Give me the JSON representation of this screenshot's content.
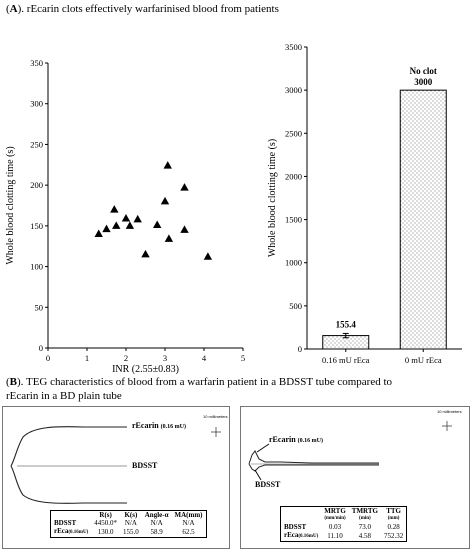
{
  "panel_a": {
    "label": "A",
    "title_rest": "). rEcarin clots effectively warfarinised blood from patients"
  },
  "panel_b": {
    "label": "B",
    "title_line1_rest": "). TEG characteristics of blood from a warfarin patient in a BDSST tube compared to",
    "title_line2": "rEcarin in a BD plain tube"
  },
  "chart_data": [
    {
      "type": "scatter",
      "title": "",
      "xlabel": "INR (2.55±0.83)",
      "ylabel": "Whole blood clotting time (s)",
      "xlim": [
        0,
        5
      ],
      "ylim": [
        0,
        350
      ],
      "xticks": [
        0,
        1,
        2,
        3,
        4,
        5
      ],
      "yticks": [
        0,
        50,
        100,
        150,
        200,
        250,
        300,
        350
      ],
      "marker": "triangle",
      "points": [
        {
          "x": 1.3,
          "y": 140
        },
        {
          "x": 1.5,
          "y": 146
        },
        {
          "x": 1.7,
          "y": 170
        },
        {
          "x": 1.75,
          "y": 150
        },
        {
          "x": 2.0,
          "y": 159
        },
        {
          "x": 2.1,
          "y": 150
        },
        {
          "x": 2.3,
          "y": 158
        },
        {
          "x": 2.5,
          "y": 115
        },
        {
          "x": 2.8,
          "y": 151
        },
        {
          "x": 3.0,
          "y": 180
        },
        {
          "x": 3.07,
          "y": 224
        },
        {
          "x": 3.1,
          "y": 134
        },
        {
          "x": 3.5,
          "y": 197
        },
        {
          "x": 3.5,
          "y": 145
        },
        {
          "x": 4.1,
          "y": 112
        }
      ]
    },
    {
      "type": "bar",
      "title": "",
      "ylabel": "Whole blood clotting time (s)",
      "ylim": [
        0,
        3500
      ],
      "yticks": [
        0,
        500,
        1000,
        1500,
        2000,
        2500,
        3000,
        3500
      ],
      "categories": [
        "0.16 mU rEca",
        "0 mU rEca"
      ],
      "values": [
        155.4,
        3000
      ],
      "error": [
        25,
        0
      ],
      "data_labels": [
        "155.4",
        "3000"
      ],
      "annotations": [
        "No clot"
      ],
      "fill": "dotted"
    }
  ],
  "teg_left": {
    "scale_label": "10 millimeters",
    "curve1_label": "rEcarin",
    "curve1_unit": "(0.16 mU)",
    "curve2_label": "BDSST",
    "table": {
      "headers": [
        "",
        "R(s)",
        "K(s)",
        "Angle-α",
        "MA(mm)"
      ],
      "rows": [
        {
          "label": "BDSST",
          "unit": "",
          "values": [
            "4450.0*",
            "N/A",
            "N/A",
            "N/A"
          ]
        },
        {
          "label": "rEca",
          "unit": "(0.16mU)",
          "values": [
            "130.0",
            "155.0",
            "58.9",
            "62.5"
          ]
        }
      ]
    }
  },
  "teg_right": {
    "scale_label": "10 millimeters",
    "curve1_label": "rEcarin",
    "curve1_unit": "(0.16 mU)",
    "curve2_label": "BDSST",
    "table": {
      "headers": [
        "",
        "MRTG",
        "TMRTG",
        "TTG"
      ],
      "subheaders": [
        "",
        "(mm/min)",
        "(min)",
        "(mm)"
      ],
      "rows": [
        {
          "label": "BDSST",
          "unit": "",
          "values": [
            "0.03",
            "73.0",
            "0.28"
          ]
        },
        {
          "label": "rEca",
          "unit": "(0.16mU)",
          "values": [
            "11.10",
            "4.58",
            "752.32"
          ]
        }
      ]
    }
  }
}
